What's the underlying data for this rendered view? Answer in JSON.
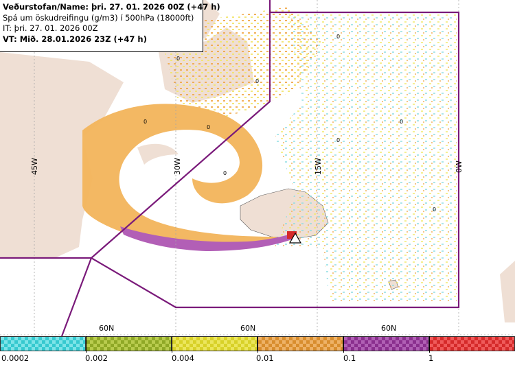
{
  "header": {
    "title_line": "Veðurstofan/Name: þri. 27. 01. 2026 00Z (+47 h)",
    "subtitle_line": "Spá um öskudreifingu (g/m3) í 500hPa (18000ft)",
    "issue_line": "IT: þri. 27. 01. 2026 00Z",
    "valid_line": "VT: Mið. 28.01.2026 23Z (+47 h)"
  },
  "map": {
    "longitude_labels": [
      "45W",
      "30W",
      "15W",
      "0W"
    ],
    "latitude_labels": [
      "60N",
      "60N",
      "60N"
    ],
    "zero_markers": [
      "0",
      "0",
      "0",
      "0",
      "0",
      "0",
      "0",
      "0",
      "0"
    ],
    "colors": {
      "land": "#efdfd4",
      "sea": "#ffffff",
      "boundary": "#7a1a7a",
      "grid": "#a6a6a6"
    }
  },
  "legend": {
    "labels": [
      "0.0002",
      "0.002",
      "0.004",
      "0.01",
      "0.1",
      "1"
    ],
    "colors": [
      "#36c9cf",
      "#8fa826",
      "#d8d128",
      "#d88d2e",
      "#8a2f8e",
      "#d52a2a"
    ],
    "colors_light": [
      "#7ee4e8",
      "#b9cc4e",
      "#ece65d",
      "#eeb267",
      "#b060b4",
      "#ef5b5b"
    ]
  }
}
